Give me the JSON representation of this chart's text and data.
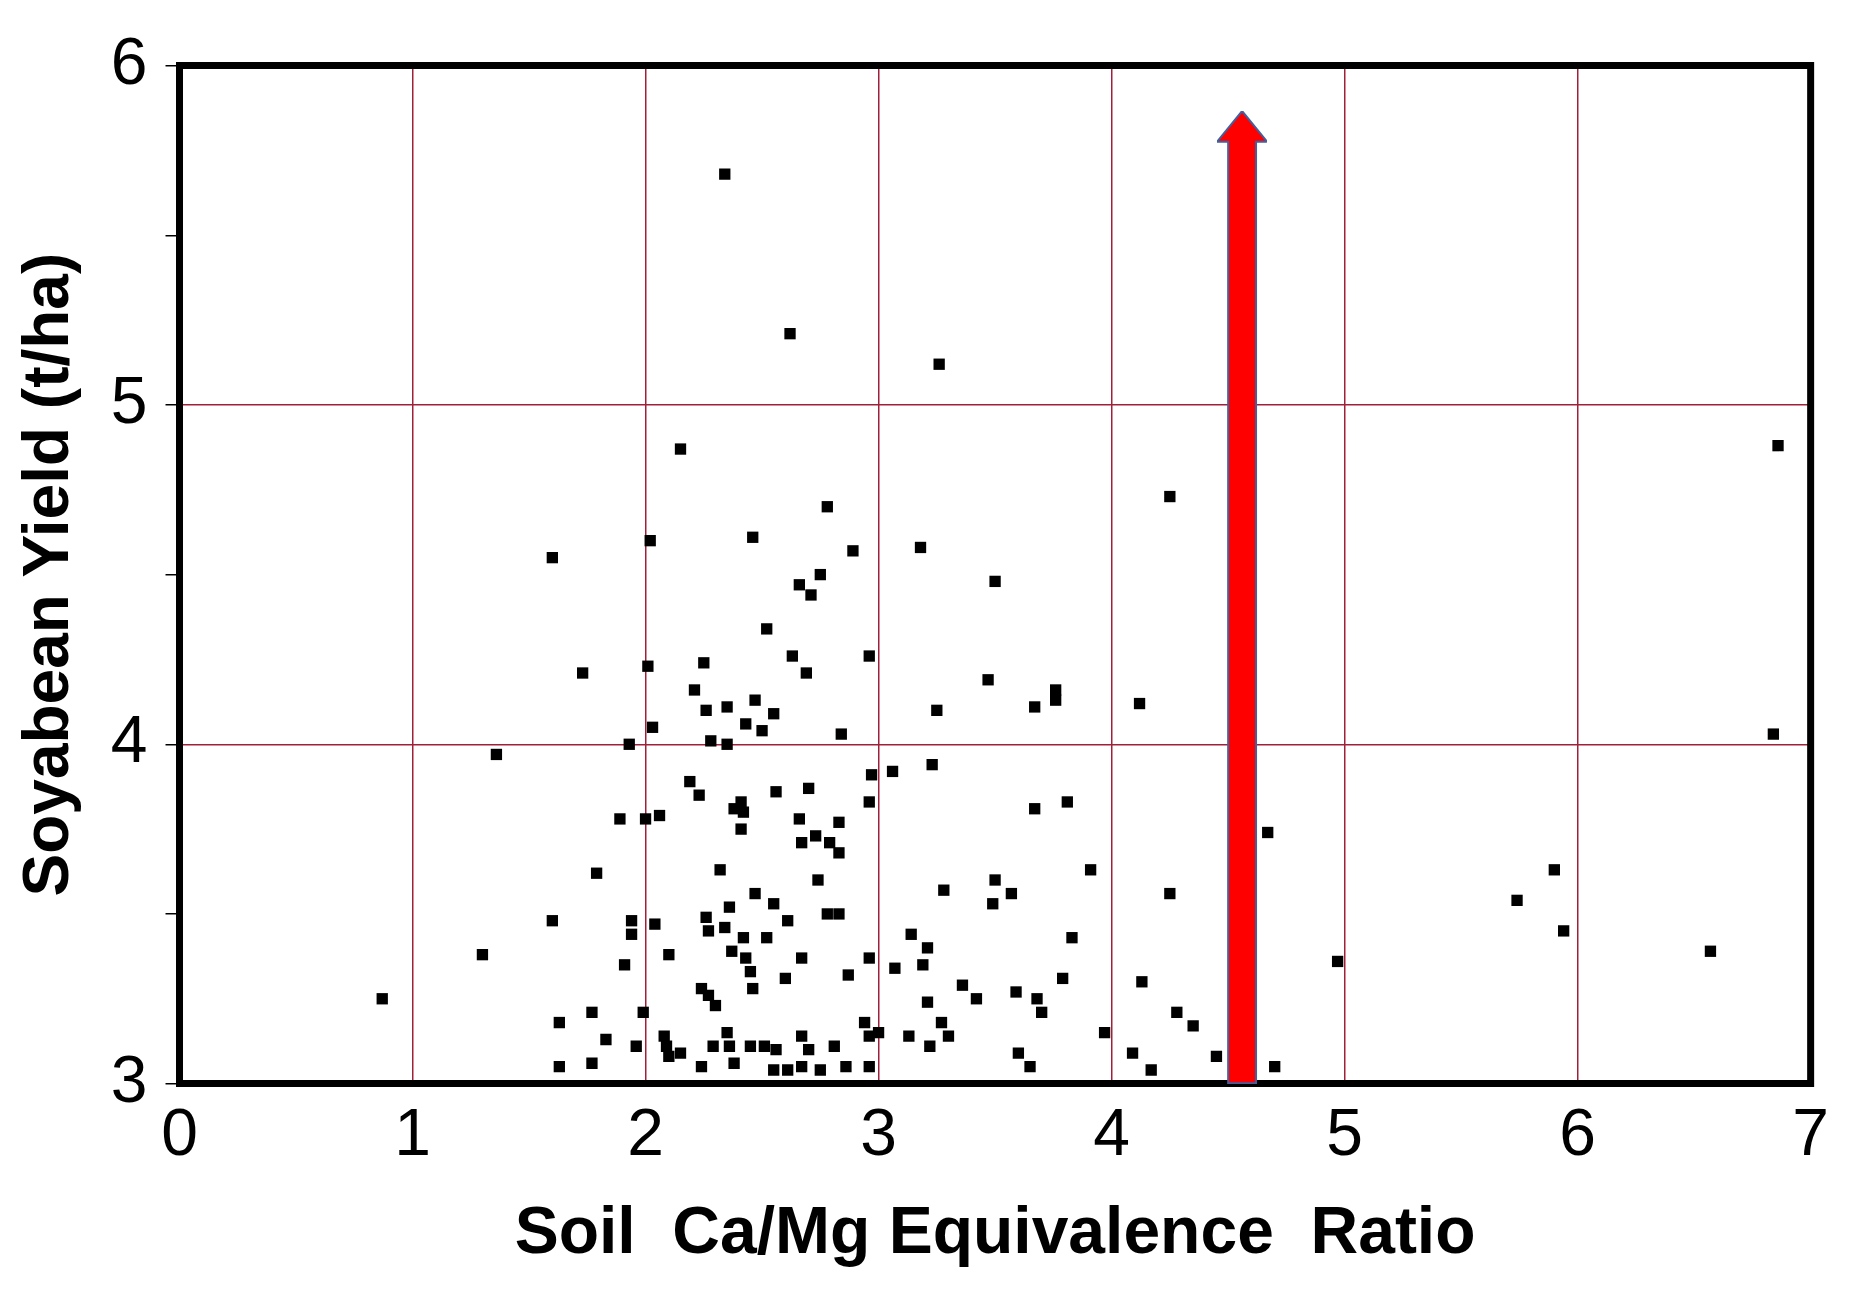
{
  "chart_data": {
    "type": "scatter",
    "xlabel": "Soil  Ca/Mg Equivalence  Ratio",
    "ylabel": "Soyabean Yield (t/ha)",
    "xlim": [
      0,
      7
    ],
    "xticks": [
      0,
      1,
      2,
      3,
      4,
      5,
      6,
      7
    ],
    "ylim": [
      3,
      6
    ],
    "yticks": [
      3,
      {
        "value": 3.5,
        "label": null
      },
      4,
      {
        "value": 4.5,
        "label": null
      },
      5,
      {
        "value": 5.5,
        "label": null
      },
      6
    ],
    "grid": true,
    "marker": "square",
    "legend": false,
    "series": [
      {
        "color": "#000000",
        "x": [
          2.34,
          2.62,
          3.26,
          2.15,
          6.86,
          4.25,
          2.78,
          1.6,
          2.02,
          2.46,
          2.89,
          3.18,
          2.75,
          2.66,
          2.71,
          3.5,
          2.52,
          1.73,
          2.01,
          2.25,
          2.63,
          2.96,
          2.69,
          3.47,
          2.21,
          2.35,
          2.26,
          2.47,
          2.55,
          2.43,
          2.5,
          2.03,
          2.28,
          2.35,
          1.93,
          2.84,
          3.25,
          3.67,
          3.76,
          3.76,
          4.12,
          6.84,
          1.36,
          3.23,
          3.06,
          2.97,
          2.19,
          2.23,
          2.41,
          2.38,
          2.42,
          2.56,
          2.7,
          2.96,
          3.67,
          3.81,
          1.89,
          2.0,
          2.06,
          2.66,
          2.83,
          2.41,
          2.73,
          2.67,
          2.79,
          2.83,
          4.67,
          1.79,
          2.32,
          2.74,
          3.91,
          5.9,
          3.28,
          3.5,
          3.57,
          3.49,
          4.25,
          5.74,
          2.47,
          1.6,
          1.94,
          2.04,
          2.26,
          2.36,
          2.55,
          2.61,
          2.78,
          2.83,
          2.27,
          2.34,
          2.42,
          2.52,
          1.94,
          3.14,
          3.21,
          5.94,
          3.83,
          1.3,
          2.1,
          2.37,
          2.43,
          2.67,
          2.96,
          6.57,
          1.91,
          3.07,
          3.19,
          4.97,
          2.45,
          2.6,
          2.87,
          3.79,
          4.13,
          2.24,
          2.46,
          3.36,
          3.59,
          0.87,
          2.27,
          3.42,
          3.21,
          3.68,
          2.3,
          3.7,
          1.77,
          1.99,
          4.28,
          4.35,
          1.63,
          2.94,
          3.27,
          2.35,
          3.97,
          2.08,
          1.83,
          1.96,
          2.09,
          2.1,
          2.15,
          2.29,
          2.36,
          2.45,
          2.51,
          2.67,
          2.56,
          2.7,
          2.81,
          2.96,
          3.0,
          3.13,
          3.22,
          3.3,
          3.6,
          4.09,
          4.45,
          1.63,
          1.77,
          2.24,
          2.38,
          2.55,
          2.61,
          2.67,
          2.75,
          2.86,
          2.96,
          3.65,
          4.17,
          4.7
        ],
        "values": [
          5.68,
          5.21,
          5.12,
          4.87,
          4.88,
          4.73,
          4.7,
          4.55,
          4.6,
          4.61,
          4.57,
          4.58,
          4.5,
          4.47,
          4.44,
          4.48,
          4.34,
          4.21,
          4.23,
          4.24,
          4.26,
          4.26,
          4.21,
          4.19,
          4.16,
          4.11,
          4.1,
          4.13,
          4.09,
          4.06,
          4.04,
          4.05,
          4.01,
          4.0,
          4.0,
          4.03,
          4.1,
          4.11,
          4.16,
          4.13,
          4.12,
          4.03,
          3.97,
          3.94,
          3.92,
          3.91,
          3.89,
          3.85,
          3.83,
          3.81,
          3.8,
          3.86,
          3.87,
          3.83,
          3.81,
          3.83,
          3.78,
          3.78,
          3.79,
          3.78,
          3.77,
          3.75,
          3.73,
          3.71,
          3.71,
          3.68,
          3.74,
          3.62,
          3.63,
          3.6,
          3.63,
          3.63,
          3.57,
          3.6,
          3.56,
          3.53,
          3.56,
          3.54,
          3.56,
          3.48,
          3.48,
          3.47,
          3.49,
          3.52,
          3.53,
          3.48,
          3.5,
          3.5,
          3.45,
          3.46,
          3.43,
          3.43,
          3.44,
          3.44,
          3.4,
          3.45,
          3.43,
          3.38,
          3.38,
          3.39,
          3.37,
          3.37,
          3.37,
          3.39,
          3.35,
          3.34,
          3.35,
          3.36,
          3.33,
          3.31,
          3.32,
          3.31,
          3.3,
          3.28,
          3.28,
          3.29,
          3.27,
          3.25,
          3.26,
          3.25,
          3.24,
          3.25,
          3.23,
          3.21,
          3.21,
          3.21,
          3.21,
          3.17,
          3.18,
          3.18,
          3.18,
          3.15,
          3.15,
          3.14,
          3.13,
          3.11,
          3.11,
          3.08,
          3.09,
          3.11,
          3.11,
          3.11,
          3.11,
          3.14,
          3.1,
          3.1,
          3.11,
          3.14,
          3.15,
          3.14,
          3.11,
          3.14,
          3.09,
          3.09,
          3.08,
          3.05,
          3.06,
          3.05,
          3.06,
          3.04,
          3.04,
          3.05,
          3.04,
          3.05,
          3.05,
          3.05,
          3.04,
          3.05
        ]
      }
    ]
  }
}
